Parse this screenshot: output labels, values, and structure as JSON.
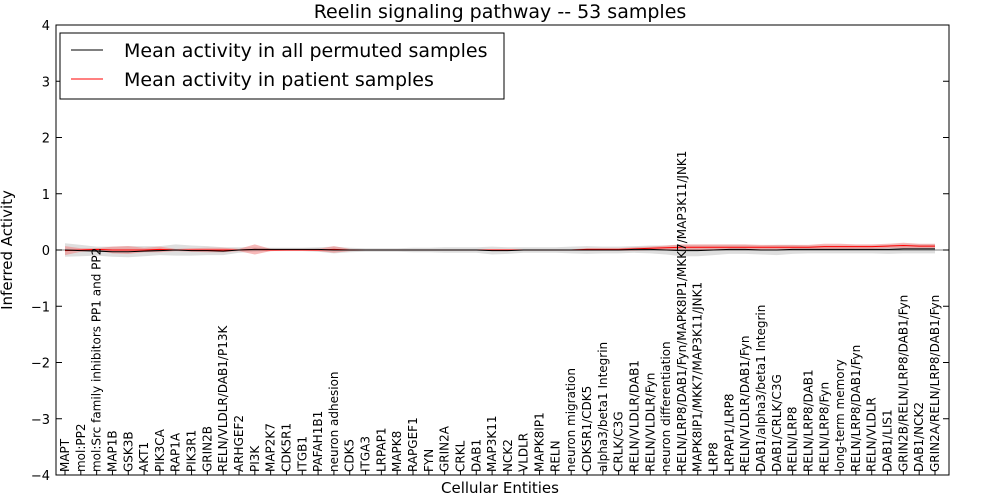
{
  "chart_data": {
    "type": "line",
    "title": "Reelin signaling pathway -- 53 samples",
    "xlabel": "Cellular Entities",
    "ylabel": "Inferred Activity",
    "ylim": [
      -4,
      4
    ],
    "yticks": [
      "−4",
      "−3",
      "−2",
      "−1",
      "0",
      "1",
      "2",
      "3",
      "4"
    ],
    "ytick_values": [
      -4,
      -3,
      -2,
      -1,
      0,
      1,
      2,
      3,
      4
    ],
    "legend": {
      "placement": "top-left",
      "entries": [
        {
          "label": "Mean activity in all permuted samples",
          "color": "#000000"
        },
        {
          "label": "Mean activity in patient samples",
          "color": "#ff0000"
        }
      ]
    },
    "colors": {
      "permuted": "#000000",
      "patient": "#ff0000",
      "permuted_band": "#c8c8c8",
      "patient_band": "#f08080"
    },
    "categories": [
      "MAPT",
      "mol:PP2",
      "mol:Src family inhibitors PP1 and PP2",
      "MAP1B",
      "GSK3B",
      "AKT1",
      "PIK3CA",
      "RAP1A",
      "PIK3R1",
      "GRIN2B",
      "RELN/VLDLR/DAB1/P13K",
      "ARHGEF2",
      "PI3K",
      "MAP2K7",
      "CDK5R1",
      "ITGB1",
      "PAFAH1B1",
      "neuron adhesion",
      "CDK5",
      "ITGA3",
      "LRPAP1",
      "MAPK8",
      "RAPGEF1",
      "FYN",
      "GRIN2A",
      "CRKL",
      "DAB1",
      "MAP3K11",
      "NCK2",
      "VLDLR",
      "MAPK8IP1",
      "RELN",
      "neuron migration",
      "CDK5R1/CDK5",
      "alpha3/beta1 Integrin",
      "CRLK/C3G",
      "RELN/VLDLR/DAB1",
      "RELN/VLDLR/Fyn",
      "neuron differentiation",
      "RELN/LRP8/DAB1/Fyn/MAPK8IP1/MKK7/MAP3K11/JNK1",
      "MAPK8IP1/MKK7/MAP3K11/JNK1",
      "LRP8",
      "LRPAP1/LRP8",
      "RELN/VLDLR/DAB1/Fyn",
      "DAB1/alpha3/beta1 Integrin",
      "DAB1/CRLK/C3G",
      "RELN/LRP8",
      "RELN/LRP8/DAB1",
      "RELN/LRP8/Fyn",
      "long-term memory",
      "RELN/LRP8/DAB1/Fyn",
      "RELN/VLDLR",
      "DAB1/LIS1",
      "GRIN2B/RELN/LRP8/DAB1/Fyn",
      "DAB1/NCK2",
      "GRIN2A/RELN/LRP8/DAB1/Fyn"
    ],
    "series": [
      {
        "name": "Mean activity in all permuted samples",
        "values": [
          0.0,
          -0.01,
          -0.02,
          -0.03,
          -0.03,
          -0.02,
          -0.01,
          0.0,
          -0.01,
          -0.01,
          -0.02,
          0.0,
          0.01,
          0.01,
          0.01,
          0.01,
          0.01,
          0.0,
          0.0,
          0.0,
          0.0,
          0.0,
          0.0,
          0.0,
          0.0,
          0.0,
          0.0,
          -0.01,
          -0.01,
          0.0,
          0.0,
          0.0,
          0.0,
          0.0,
          0.0,
          0.0,
          0.01,
          0.01,
          0.0,
          -0.01,
          -0.01,
          0.0,
          0.01,
          0.01,
          0.0,
          0.0,
          0.01,
          0.01,
          0.01,
          0.01,
          0.01,
          0.01,
          0.01,
          0.02,
          0.02,
          0.02
        ],
        "band": [
          0.12,
          0.1,
          0.08,
          0.09,
          0.1,
          0.09,
          0.08,
          0.1,
          0.09,
          0.08,
          0.07,
          0.05,
          0.04,
          0.03,
          0.03,
          0.03,
          0.04,
          0.06,
          0.04,
          0.03,
          0.03,
          0.03,
          0.04,
          0.04,
          0.05,
          0.05,
          0.05,
          0.07,
          0.06,
          0.05,
          0.05,
          0.05,
          0.06,
          0.07,
          0.06,
          0.06,
          0.06,
          0.07,
          0.08,
          0.1,
          0.1,
          0.09,
          0.08,
          0.08,
          0.08,
          0.09,
          0.08,
          0.07,
          0.07,
          0.07,
          0.07,
          0.07,
          0.08,
          0.08,
          0.08,
          0.08
        ]
      },
      {
        "name": "Mean activity in patient samples",
        "values": [
          -0.01,
          0.0,
          0.01,
          0.0,
          0.0,
          0.0,
          0.01,
          0.0,
          0.0,
          0.0,
          0.0,
          0.0,
          0.01,
          0.0,
          0.0,
          0.0,
          0.0,
          0.01,
          0.0,
          0.0,
          0.0,
          0.0,
          0.0,
          0.0,
          0.0,
          0.0,
          0.0,
          0.0,
          0.0,
          0.0,
          0.0,
          0.0,
          0.0,
          0.01,
          0.01,
          0.01,
          0.02,
          0.03,
          0.04,
          0.05,
          0.05,
          0.05,
          0.05,
          0.05,
          0.05,
          0.05,
          0.05,
          0.05,
          0.06,
          0.06,
          0.06,
          0.06,
          0.07,
          0.08,
          0.07,
          0.07
        ],
        "band": [
          0.08,
          0.03,
          0.02,
          0.06,
          0.07,
          0.04,
          0.05,
          0.02,
          0.03,
          0.04,
          0.04,
          0.02,
          0.09,
          0.02,
          0.01,
          0.01,
          0.02,
          0.06,
          0.02,
          0.01,
          0.01,
          0.01,
          0.01,
          0.01,
          0.01,
          0.01,
          0.01,
          0.01,
          0.01,
          0.01,
          0.01,
          0.01,
          0.01,
          0.02,
          0.02,
          0.02,
          0.03,
          0.03,
          0.04,
          0.05,
          0.05,
          0.05,
          0.05,
          0.05,
          0.04,
          0.04,
          0.04,
          0.04,
          0.05,
          0.05,
          0.04,
          0.04,
          0.04,
          0.05,
          0.04,
          0.04
        ]
      }
    ]
  }
}
